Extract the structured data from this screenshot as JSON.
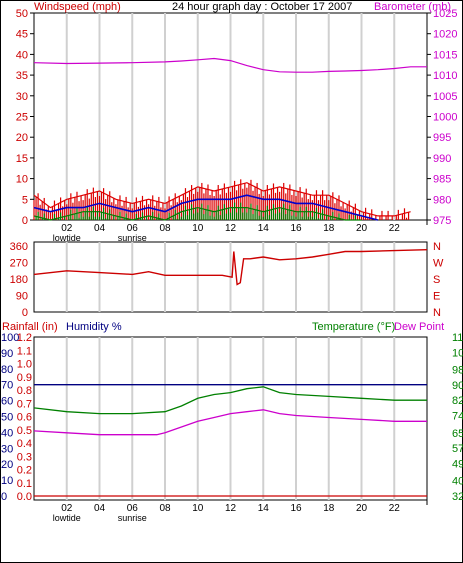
{
  "header": {
    "left_label": "Windspeed (mph)",
    "title": "24 hour graph day : October 17 2007",
    "right_label": "Barometer (mb)"
  },
  "colors": {
    "wind_label": "#cc0000",
    "baro_label": "#cc00cc",
    "title": "#000000",
    "rain_label": "#cc0000",
    "humidity_label": "#000080",
    "temp_label": "#008000",
    "dewpoint_label": "#cc00cc",
    "grid": "#d0d0d0",
    "frame": "#000000"
  },
  "bottom_labels": {
    "rainfall": "Rainfall (in)",
    "humidity": "Humidity %",
    "temperature": "Temperature (°F)",
    "dewpoint": "Dew Point"
  },
  "chart_data": [
    {
      "type": "line",
      "name": "wind-barometer",
      "x_ticks": [
        "02",
        "04",
        "06",
        "08",
        "10",
        "12",
        "14",
        "16",
        "18",
        "20",
        "22"
      ],
      "x_sublabels": {
        "02": "lowtide",
        "06": "sunrise"
      },
      "ylabel_left": "Windspeed (mph)",
      "ylabel_right": "Barometer (mb)",
      "ylim_left": [
        0,
        50
      ],
      "ylim_right": [
        975,
        1025
      ],
      "yticks_left": [
        0,
        5,
        10,
        15,
        20,
        25,
        30,
        35,
        40,
        45,
        50
      ],
      "yticks_right": [
        975,
        980,
        985,
        990,
        995,
        1000,
        1005,
        1010,
        1015,
        1020,
        1025
      ],
      "series": [
        {
          "key": "barometer",
          "axis": "right",
          "color": "#cc00cc",
          "x": [
            0,
            2,
            4,
            6,
            8,
            9,
            10,
            11,
            12,
            13,
            14,
            15,
            16,
            17,
            18,
            19,
            20,
            21,
            22,
            23,
            24
          ],
          "y": [
            1013,
            1012.8,
            1012.9,
            1013,
            1013.2,
            1013.4,
            1013.7,
            1014,
            1013.5,
            1012.3,
            1011.3,
            1010.8,
            1010.7,
            1010.7,
            1010.9,
            1011,
            1011.1,
            1011.3,
            1011.6,
            1012,
            1012
          ]
        },
        {
          "key": "wind_gust",
          "axis": "left",
          "color": "#dd0000",
          "x": [
            0,
            1,
            2,
            3,
            4,
            5,
            6,
            7,
            8,
            9,
            10,
            11,
            12,
            13,
            14,
            15,
            16,
            17,
            18,
            19,
            20,
            21,
            22,
            23
          ],
          "y": [
            6,
            3,
            5,
            6,
            7,
            5,
            4,
            5,
            4,
            6,
            8,
            7,
            8,
            9,
            7,
            8,
            7,
            6,
            6,
            4,
            2,
            1,
            1,
            2
          ]
        },
        {
          "key": "wind_avg",
          "axis": "left",
          "color": "#0000cc",
          "x": [
            0,
            1,
            2,
            3,
            4,
            5,
            6,
            7,
            8,
            9,
            10,
            11,
            12,
            13,
            14,
            15,
            16,
            17,
            18,
            19,
            20,
            21
          ],
          "y": [
            3,
            2,
            3,
            3,
            4,
            3,
            2,
            3,
            2,
            4,
            5,
            5,
            5,
            6,
            5,
            5,
            4,
            4,
            3,
            2,
            1,
            0
          ]
        },
        {
          "key": "wind_min",
          "axis": "left",
          "color": "#008000",
          "x": [
            0,
            1,
            2,
            3,
            4,
            5,
            6,
            7,
            8,
            9,
            10,
            11,
            12,
            13,
            14,
            15,
            16,
            17,
            18,
            19,
            20
          ],
          "y": [
            1,
            0,
            1,
            2,
            2,
            1,
            0,
            1,
            0,
            2,
            3,
            2,
            3,
            3,
            2,
            3,
            2,
            2,
            1,
            0,
            0
          ]
        }
      ]
    },
    {
      "type": "line",
      "name": "wind-direction",
      "x_ticks": [
        "02",
        "04",
        "06",
        "08",
        "10",
        "12",
        "14",
        "16",
        "18",
        "20",
        "22"
      ],
      "ylim": [
        0,
        360
      ],
      "yticks_left": [
        0,
        90,
        180,
        270,
        360
      ],
      "compass_labels": [
        "N",
        "W",
        "S",
        "E",
        "N"
      ],
      "series": [
        {
          "key": "direction",
          "color": "#cc0000",
          "x": [
            0,
            2,
            4,
            6,
            7,
            8,
            10,
            11.5,
            12.1,
            12.2,
            12.4,
            12.6,
            12.8,
            13.2,
            14,
            15,
            16,
            17,
            18,
            19,
            20,
            22,
            24
          ],
          "y": [
            205,
            225,
            215,
            205,
            220,
            200,
            200,
            200,
            190,
            330,
            150,
            160,
            290,
            290,
            300,
            285,
            290,
            300,
            315,
            330,
            330,
            335,
            340
          ]
        }
      ]
    },
    {
      "type": "line",
      "name": "rain-humidity-temperature",
      "x_ticks": [
        "02",
        "04",
        "06",
        "08",
        "10",
        "12",
        "14",
        "16",
        "18",
        "20",
        "22"
      ],
      "x_sublabels": {
        "02": "lowtide",
        "06": "sunrise"
      },
      "yticks_humidity": [
        0,
        10,
        20,
        30,
        40,
        50,
        60,
        70,
        80,
        90,
        100
      ],
      "yticks_rain": [
        0.0,
        0.1,
        0.2,
        0.3,
        0.4,
        0.5,
        0.6,
        0.7,
        0.8,
        0.9,
        1.0,
        1.1,
        1.2
      ],
      "yticks_temp": [
        32,
        40,
        49,
        57,
        65,
        74,
        82,
        90,
        98,
        107,
        115
      ],
      "ylim_humidity": [
        0,
        100
      ],
      "ylim_temp": [
        32,
        115
      ],
      "series": [
        {
          "key": "humidity",
          "axis": "humidity",
          "color": "#000080",
          "x": [
            0,
            24
          ],
          "y": [
            70,
            70
          ]
        },
        {
          "key": "temperature",
          "axis": "temp",
          "color": "#008000",
          "x": [
            0,
            2,
            4,
            6,
            8,
            9,
            10,
            11,
            12,
            13,
            14,
            15,
            16,
            18,
            20,
            22,
            24
          ],
          "y": [
            78,
            76,
            75,
            75,
            76,
            79,
            83,
            85,
            86,
            88,
            89,
            86,
            85,
            84,
            83,
            82,
            82
          ]
        },
        {
          "key": "dewpoint",
          "axis": "temp",
          "color": "#cc00cc",
          "x": [
            0,
            2,
            4,
            6,
            7.5,
            8,
            9,
            10,
            11,
            12,
            13,
            14,
            15,
            16,
            18,
            20,
            22,
            24
          ],
          "y": [
            66,
            65,
            64,
            64,
            64,
            65,
            68,
            71,
            73,
            75,
            76,
            77,
            75,
            74,
            73,
            72,
            71,
            71
          ]
        },
        {
          "key": "rainfall",
          "axis": "rain",
          "color": "#cc0000",
          "x": [
            0,
            24
          ],
          "y": [
            0,
            0
          ]
        }
      ]
    }
  ]
}
